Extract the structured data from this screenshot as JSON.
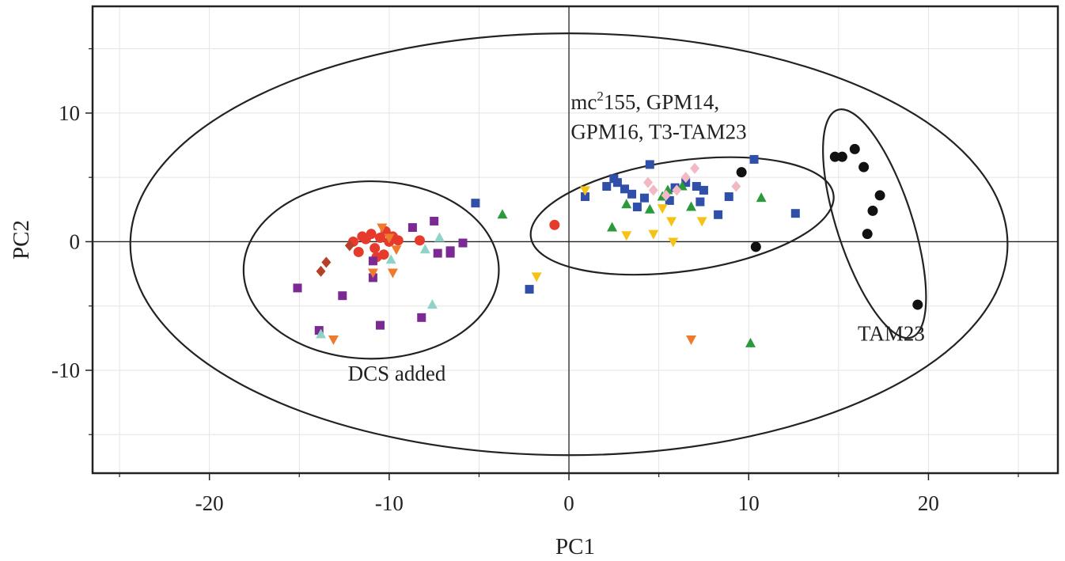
{
  "chart_data": {
    "type": "scatter",
    "xlabel": "PC1",
    "ylabel": "PC2",
    "xlim": [
      -26.5,
      27.2
    ],
    "ylim": [
      -18,
      18.3
    ],
    "grid": true,
    "x_ticks": [
      -20,
      -10,
      0,
      10,
      20
    ],
    "y_ticks": [
      -10,
      0,
      10
    ],
    "x_tick_labels": [
      "-20",
      "-10",
      "0",
      "10",
      "20"
    ],
    "y_tick_labels": [
      "-10",
      "0",
      "10"
    ],
    "x_minor_ticks": [
      -25,
      -15,
      -5,
      5,
      15,
      25
    ],
    "y_minor_ticks": [
      -15,
      -5,
      5,
      15
    ],
    "annotations": [
      {
        "id": "dcs",
        "text": "DCS added",
        "x": -12.3,
        "y": -10.8
      },
      {
        "id": "tam",
        "text": "TAM23",
        "x": 19.8,
        "y": -7.7
      },
      {
        "id": "mc1",
        "text_parts": [
          "mc",
          "2",
          "155, GPM14,"
        ],
        "x": 0.1,
        "y": 10.3
      },
      {
        "id": "mc2",
        "text": "GPM16, T3-TAM23",
        "x": 0.1,
        "y": 8.0
      }
    ],
    "ellipses": [
      {
        "name": "overall",
        "cx": 0,
        "cy": -0.2,
        "rx": 24.4,
        "ry": 16.4
      },
      {
        "name": "dcs-added",
        "cx": -11.0,
        "cy": -2.2,
        "rx": 7.1,
        "ry": 6.9
      },
      {
        "name": "mc155-group",
        "cx": 6.3,
        "cy": 2.0,
        "rx": 8.5,
        "ry": 4.3,
        "angle": 8
      },
      {
        "name": "tam23",
        "cx": 17.0,
        "cy": 1.4,
        "rx": 2.1,
        "ry": 9.3,
        "angle": 18
      }
    ],
    "series": [
      {
        "marker": "circle",
        "color": "#e53a2c",
        "x": [
          -12.0,
          -11.7,
          -11.3,
          -11.0,
          -10.8,
          -10.5,
          -10.3,
          -10.0,
          -9.8,
          -9.5,
          -10.2,
          -11.5,
          -8.3,
          -0.8,
          -10.7
        ],
        "y": [
          0.0,
          -0.8,
          0.2,
          0.6,
          -0.5,
          0.3,
          -1.0,
          0.0,
          0.4,
          0.1,
          0.8,
          0.4,
          0.1,
          1.3,
          -1.2
        ]
      },
      {
        "marker": "diamond",
        "color": "#b5412a",
        "x": [
          -13.8,
          -13.5,
          -12.2
        ],
        "y": [
          -2.3,
          -1.6,
          -0.3
        ]
      },
      {
        "marker": "square",
        "color": "#7b2a94",
        "x": [
          -15.1,
          -13.9,
          -12.6,
          -10.9,
          -10.5,
          -10.9,
          -8.7,
          -8.2,
          -7.5,
          -7.3,
          -6.6,
          -6.6,
          -5.9
        ],
        "y": [
          -3.6,
          -6.9,
          -4.2,
          -2.8,
          -6.5,
          -1.5,
          1.1,
          -5.9,
          1.6,
          -0.9,
          -0.7,
          -0.9,
          -0.1
        ]
      },
      {
        "marker": "triangle-up",
        "color": "#8fd3c7",
        "x": [
          -13.8,
          -9.9,
          -8.0,
          -7.6,
          -7.2
        ],
        "y": [
          -7.2,
          -1.4,
          -0.6,
          -4.9,
          0.3
        ]
      },
      {
        "marker": "triangle-down",
        "color": "#ee7a2d",
        "x": [
          -10.4,
          -10.0,
          -9.6,
          -10.9,
          -9.8,
          -13.1,
          6.8
        ],
        "y": [
          1.1,
          0.3,
          -0.6,
          -2.4,
          -2.4,
          -7.6,
          -7.6
        ]
      },
      {
        "marker": "square",
        "color": "#2f4fa8",
        "x": [
          -5.2,
          -2.2,
          0.9,
          2.1,
          2.5,
          2.7,
          3.1,
          3.5,
          3.8,
          4.2,
          4.5,
          5.6,
          5.9,
          6.5,
          7.1,
          7.3,
          7.5,
          8.3,
          8.9,
          10.3,
          12.6
        ],
        "y": [
          3.0,
          -3.7,
          3.5,
          4.3,
          4.9,
          4.6,
          4.1,
          3.7,
          2.7,
          3.4,
          6.0,
          3.2,
          4.2,
          4.6,
          4.3,
          3.1,
          4.0,
          2.1,
          3.5,
          6.4,
          2.2
        ]
      },
      {
        "marker": "triangle-up",
        "color": "#2a9a3b",
        "x": [
          -3.7,
          2.4,
          3.2,
          4.5,
          5.2,
          5.5,
          6.3,
          6.8,
          10.7,
          10.1
        ],
        "y": [
          2.1,
          1.1,
          2.9,
          2.5,
          3.5,
          4.0,
          4.3,
          2.7,
          3.4,
          -7.9
        ]
      },
      {
        "marker": "triangle-down",
        "color": "#f5c317",
        "x": [
          -1.8,
          0.9,
          3.2,
          4.7,
          5.2,
          5.7,
          5.8,
          7.4
        ],
        "y": [
          -2.7,
          4.0,
          0.5,
          0.6,
          2.6,
          1.6,
          0.0,
          1.6
        ]
      },
      {
        "marker": "diamond",
        "color": "#f2b9c4",
        "x": [
          4.4,
          4.7,
          5.4,
          6.0,
          6.5,
          7.0,
          9.3
        ],
        "y": [
          4.6,
          4.0,
          3.6,
          4.0,
          5.0,
          5.7,
          4.3
        ]
      },
      {
        "marker": "circle",
        "color": "#111111",
        "x": [
          9.6,
          10.4,
          14.8,
          15.2,
          15.9,
          16.4,
          16.6,
          16.9,
          17.3,
          19.4
        ],
        "y": [
          5.4,
          -0.4,
          6.6,
          6.6,
          7.2,
          5.8,
          0.6,
          2.4,
          3.6,
          -4.9
        ]
      }
    ]
  }
}
